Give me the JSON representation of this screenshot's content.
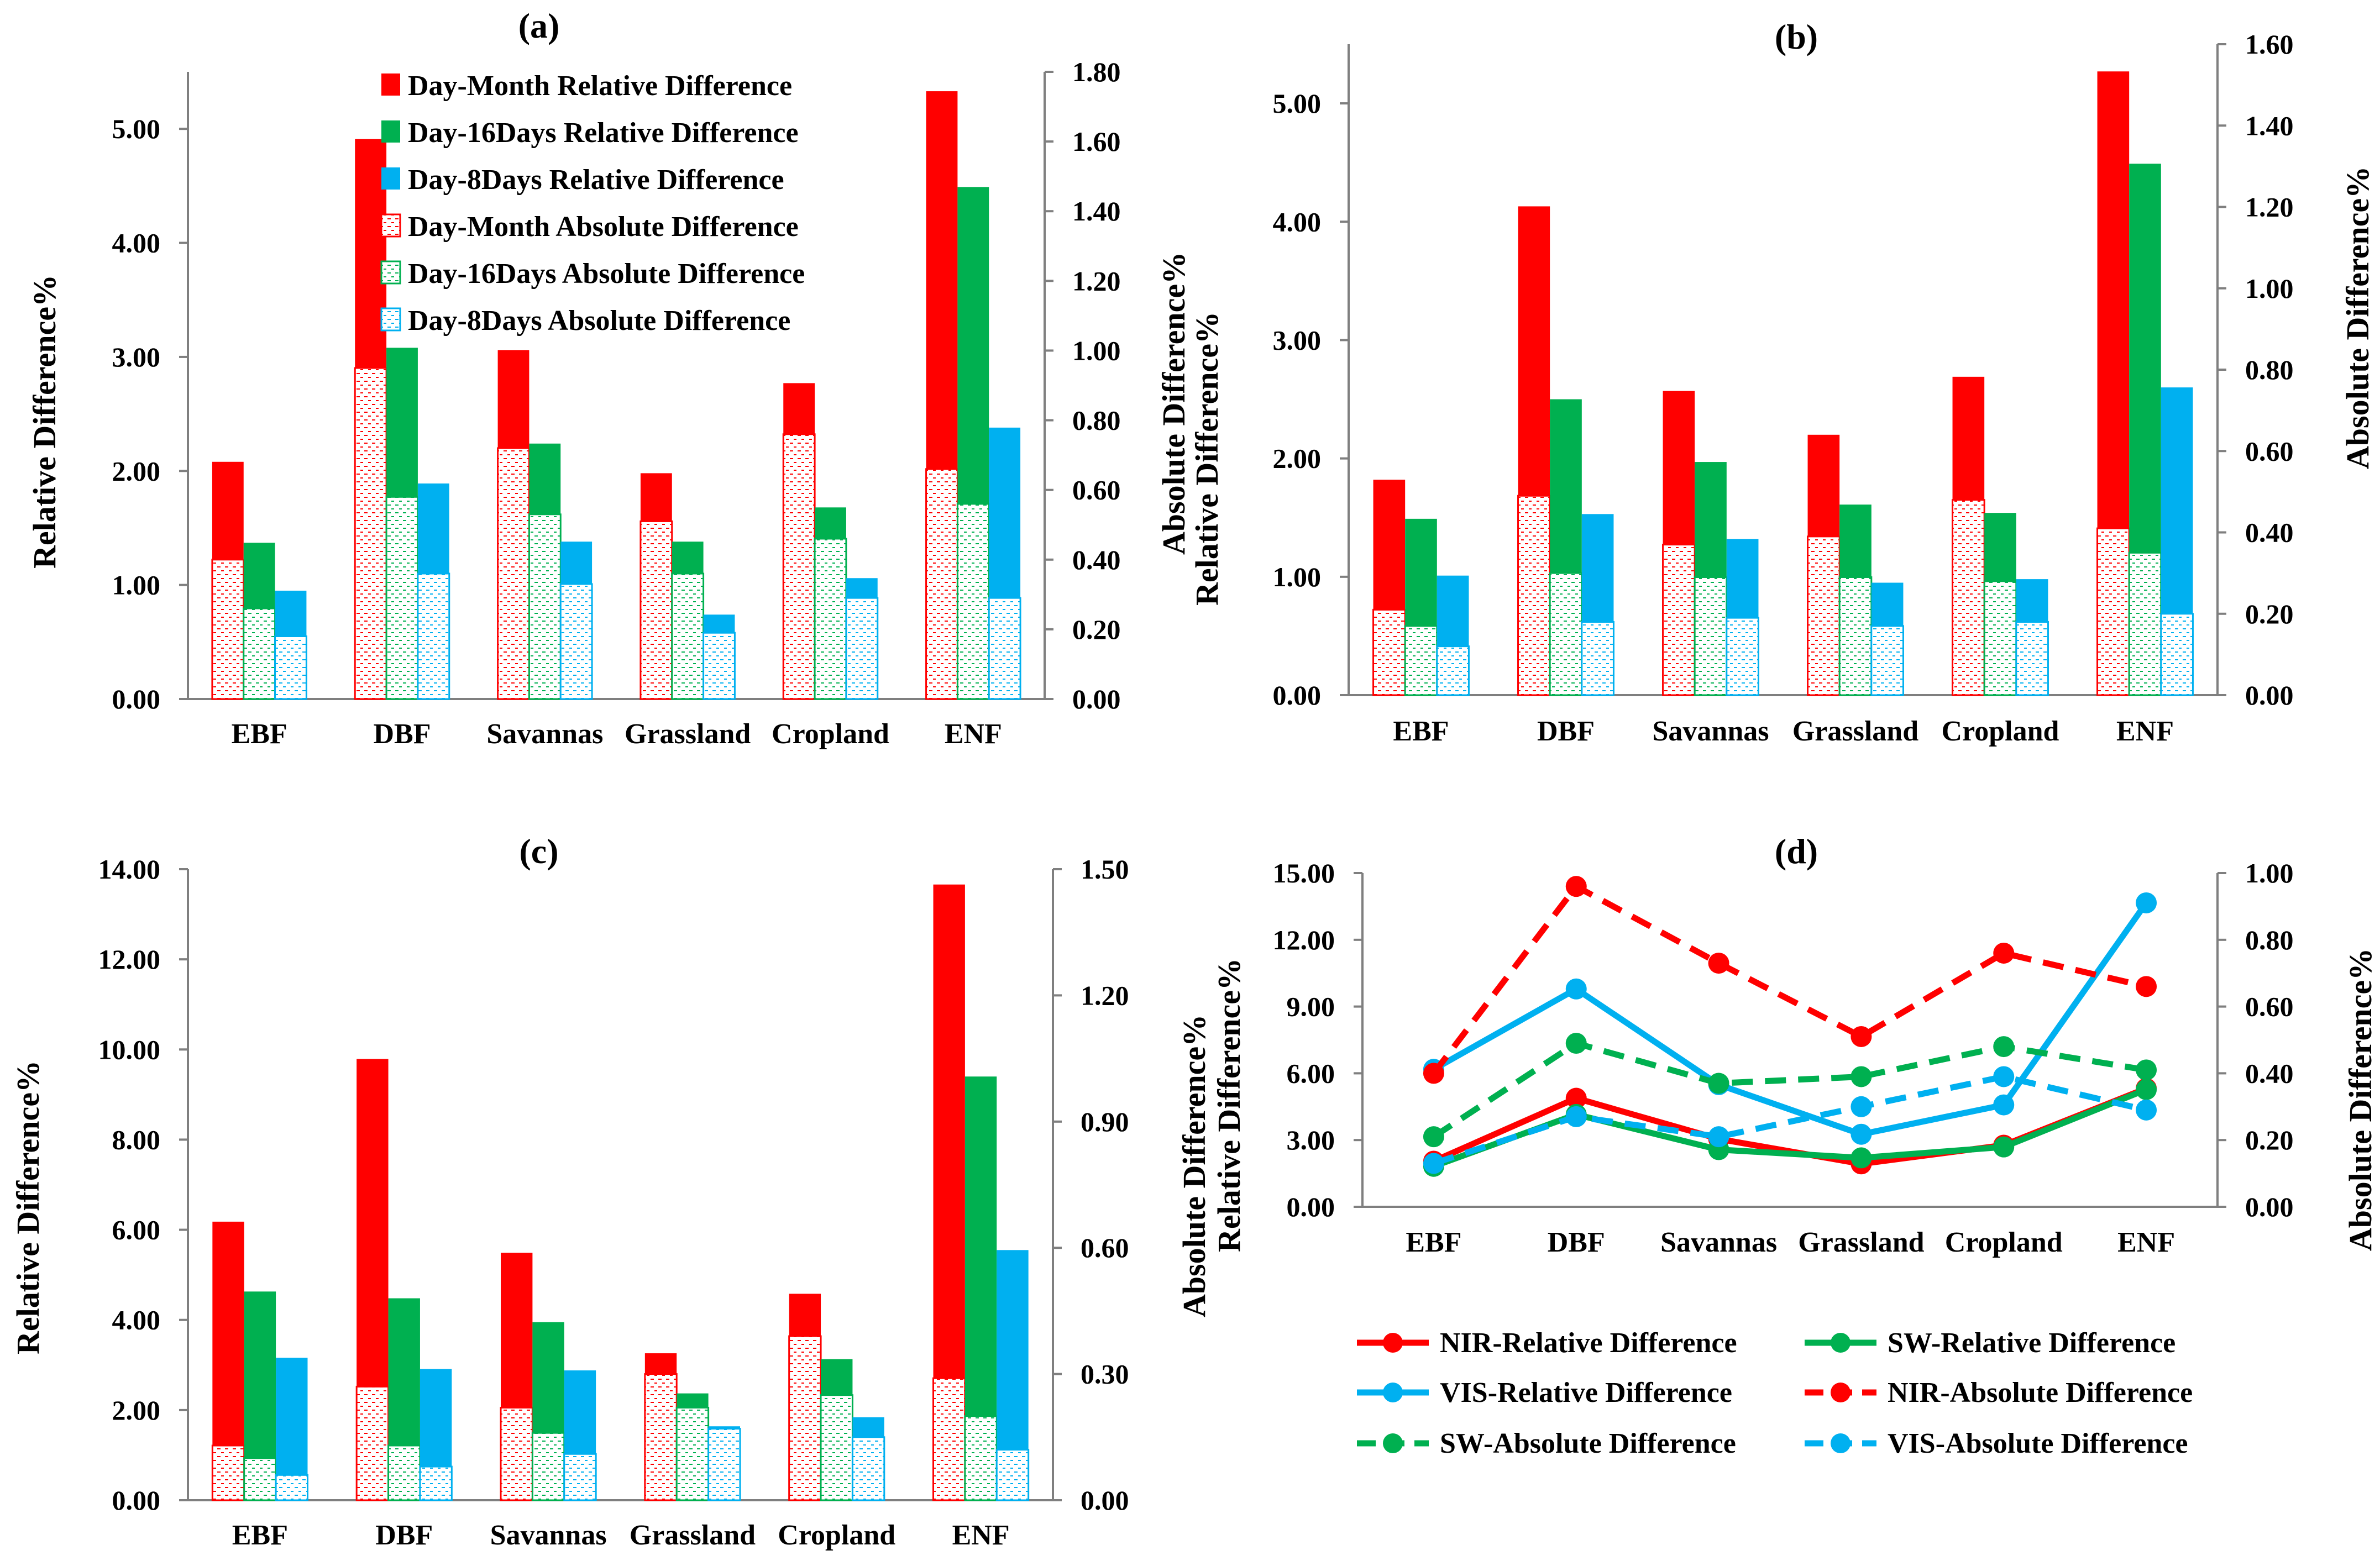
{
  "colors": {
    "red": "#ff0000",
    "green": "#00b050",
    "blue": "#00b0f0",
    "axis": "#7f7f7f"
  },
  "chart_data": [
    {
      "type": "bar",
      "title": "(a)",
      "categories": [
        "EBF",
        "DBF",
        "Savannas",
        "Grassland",
        "Cropland",
        "ENF"
      ],
      "ylabel": "Relative Difference%",
      "y2label": "Absolute Difference%",
      "ylim": [
        0,
        5.5
      ],
      "y2lim": [
        0,
        1.8
      ],
      "yticks": [
        "0.00",
        "1.00",
        "2.00",
        "3.00",
        "4.00",
        "5.00"
      ],
      "y2ticks": [
        "0.00",
        "0.20",
        "0.40",
        "0.60",
        "0.80",
        "1.00",
        "1.20",
        "1.40",
        "1.60",
        "1.80"
      ],
      "legend_position": "top-inside",
      "series": [
        {
          "name": "Day-Month Relative Difference",
          "axis": "left",
          "style": "solid",
          "color": "red",
          "values": [
            2.08,
            4.91,
            3.06,
            1.98,
            2.77,
            5.33
          ]
        },
        {
          "name": "Day-16Days Relative Difference",
          "axis": "left",
          "style": "solid",
          "color": "green",
          "values": [
            1.37,
            3.08,
            2.24,
            1.38,
            1.68,
            4.49
          ]
        },
        {
          "name": "Day-8Days Relative Difference",
          "axis": "left",
          "style": "solid",
          "color": "blue",
          "values": [
            0.95,
            1.89,
            1.38,
            0.74,
            1.06,
            2.38
          ]
        },
        {
          "name": "Day-Month Absolute Difference",
          "axis": "right",
          "style": "hatched",
          "color": "red",
          "values": [
            0.4,
            0.95,
            0.72,
            0.51,
            0.76,
            0.66
          ]
        },
        {
          "name": "Day-16Days Absolute Difference",
          "axis": "right",
          "style": "hatched",
          "color": "green",
          "values": [
            0.26,
            0.58,
            0.53,
            0.36,
            0.46,
            0.56
          ]
        },
        {
          "name": "Day-8Days Absolute Difference",
          "axis": "right",
          "style": "hatched",
          "color": "blue",
          "values": [
            0.18,
            0.36,
            0.33,
            0.19,
            0.29,
            0.29
          ]
        }
      ]
    },
    {
      "type": "bar",
      "title": "(b)",
      "categories": [
        "EBF",
        "DBF",
        "Savannas",
        "Grassland",
        "Cropland",
        "ENF"
      ],
      "ylabel": "Relative Difference%",
      "y2label": "Absolute Difference%",
      "ylim": [
        0,
        5.5
      ],
      "y2lim": [
        0,
        1.6
      ],
      "yticks": [
        "0.00",
        "1.00",
        "2.00",
        "3.00",
        "4.00",
        "5.00"
      ],
      "y2ticks": [
        "0.00",
        "0.20",
        "0.40",
        "0.60",
        "0.80",
        "1.00",
        "1.20",
        "1.40",
        "1.60"
      ],
      "series": [
        {
          "name": "Day-Month Relative Difference",
          "axis": "left",
          "style": "solid",
          "color": "red",
          "values": [
            1.82,
            4.13,
            2.57,
            2.2,
            2.69,
            5.27
          ]
        },
        {
          "name": "Day-16Days Relative Difference",
          "axis": "left",
          "style": "solid",
          "color": "green",
          "values": [
            1.49,
            2.5,
            1.97,
            1.61,
            1.54,
            4.49
          ]
        },
        {
          "name": "Day-8Days Relative Difference",
          "axis": "left",
          "style": "solid",
          "color": "blue",
          "values": [
            1.01,
            1.53,
            1.32,
            0.95,
            0.98,
            2.6
          ]
        },
        {
          "name": "Day-Month Absolute Difference",
          "axis": "right",
          "style": "hatched",
          "color": "red",
          "values": [
            0.21,
            0.49,
            0.37,
            0.39,
            0.48,
            0.41
          ]
        },
        {
          "name": "Day-16Days Absolute Difference",
          "axis": "right",
          "style": "hatched",
          "color": "green",
          "values": [
            0.17,
            0.3,
            0.29,
            0.29,
            0.28,
            0.35
          ]
        },
        {
          "name": "Day-8Days Absolute Difference",
          "axis": "right",
          "style": "hatched",
          "color": "blue",
          "values": [
            0.12,
            0.18,
            0.19,
            0.17,
            0.18,
            0.2
          ]
        }
      ]
    },
    {
      "type": "bar",
      "title": "(c)",
      "categories": [
        "EBF",
        "DBF",
        "Savannas",
        "Grassland",
        "Cropland",
        "ENF"
      ],
      "ylabel": "Relative Difference%",
      "y2label": "Absolute Difference%",
      "ylim": [
        0,
        14
      ],
      "y2lim": [
        0,
        1.5
      ],
      "yticks": [
        "0.00",
        "2.00",
        "4.00",
        "6.00",
        "8.00",
        "10.00",
        "12.00",
        "14.00"
      ],
      "y2ticks": [
        "0.00",
        "0.30",
        "0.60",
        "0.90",
        "1.20",
        "1.50"
      ],
      "series": [
        {
          "name": "Day-Month Relative Difference",
          "axis": "left",
          "style": "solid",
          "color": "red",
          "values": [
            6.18,
            9.79,
            5.49,
            3.26,
            4.58,
            13.66
          ]
        },
        {
          "name": "Day-16Days Relative Difference",
          "axis": "left",
          "style": "solid",
          "color": "green",
          "values": [
            4.63,
            4.48,
            3.95,
            2.37,
            3.13,
            9.4
          ]
        },
        {
          "name": "Day-8Days Relative Difference",
          "axis": "left",
          "style": "solid",
          "color": "blue",
          "values": [
            3.16,
            2.91,
            2.88,
            1.64,
            1.84,
            5.55
          ]
        },
        {
          "name": "Day-Month Absolute Difference",
          "axis": "right",
          "style": "hatched",
          "color": "red",
          "values": [
            0.13,
            0.27,
            0.22,
            0.3,
            0.39,
            0.29
          ]
        },
        {
          "name": "Day-16Days Absolute Difference",
          "axis": "right",
          "style": "hatched",
          "color": "green",
          "values": [
            0.1,
            0.13,
            0.16,
            0.22,
            0.25,
            0.2
          ]
        },
        {
          "name": "Day-8Days Absolute Difference",
          "axis": "right",
          "style": "hatched",
          "color": "blue",
          "values": [
            0.06,
            0.08,
            0.11,
            0.17,
            0.15,
            0.12
          ]
        }
      ]
    },
    {
      "type": "line",
      "title": "(d)",
      "categories": [
        "EBF",
        "DBF",
        "Savannas",
        "Grassland",
        "Cropland",
        "ENF"
      ],
      "ylabel": "Relative Difference%",
      "y2label": "Absolute Difference%",
      "ylim": [
        0,
        15
      ],
      "y2lim": [
        0,
        1.0
      ],
      "yticks": [
        "0.00",
        "3.00",
        "6.00",
        "9.00",
        "12.00",
        "15.00"
      ],
      "y2ticks": [
        "0.00",
        "0.20",
        "0.40",
        "0.60",
        "0.80",
        "1.00"
      ],
      "legend_position": "bottom",
      "series": [
        {
          "name": "NIR-Relative Difference",
          "axis": "left",
          "dash": false,
          "color": "red",
          "values": [
            2.05,
            4.88,
            3.05,
            1.93,
            2.77,
            5.32
          ]
        },
        {
          "name": "SW-Relative Difference",
          "axis": "left",
          "dash": false,
          "color": "green",
          "values": [
            1.82,
            4.15,
            2.57,
            2.2,
            2.69,
            5.27
          ]
        },
        {
          "name": "VIS-Relative Difference",
          "axis": "left",
          "dash": false,
          "color": "blue",
          "values": [
            6.18,
            9.79,
            5.49,
            3.26,
            4.58,
            13.66
          ]
        },
        {
          "name": "NIR-Absolute Difference",
          "axis": "right",
          "dash": true,
          "color": "red",
          "values": [
            0.4,
            0.96,
            0.73,
            0.51,
            0.76,
            0.66
          ]
        },
        {
          "name": "SW-Absolute Difference",
          "axis": "right",
          "dash": true,
          "color": "green",
          "values": [
            0.21,
            0.49,
            0.37,
            0.39,
            0.48,
            0.41
          ]
        },
        {
          "name": "VIS-Absolute Difference",
          "axis": "right",
          "dash": true,
          "color": "blue",
          "values": [
            0.13,
            0.27,
            0.21,
            0.3,
            0.39,
            0.29
          ]
        }
      ]
    }
  ]
}
